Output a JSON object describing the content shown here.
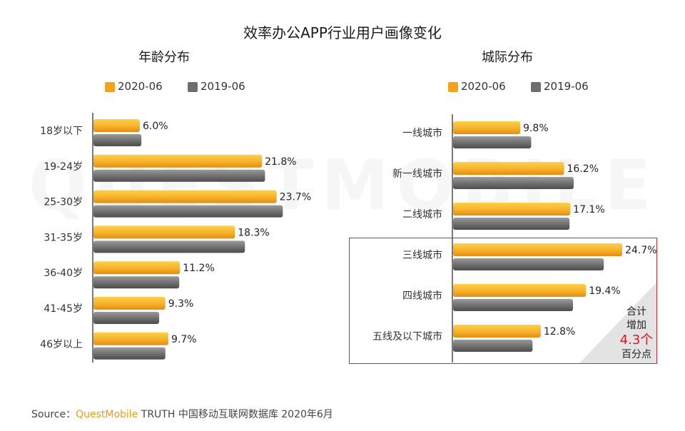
{
  "watermark": "QUESTMOBILE",
  "title": "效率办公APP行业用户画像变化",
  "legend": {
    "a_label": "2020-06",
    "b_label": "2019-06",
    "a_color": "#f5a21b",
    "b_color": "#6d6d6d"
  },
  "chart_data": [
    {
      "type": "bar",
      "orientation": "horizontal",
      "title": "年龄分布",
      "categories": [
        "18岁以下",
        "19-24岁",
        "25-30岁",
        "31-35岁",
        "36-40岁",
        "41-45岁",
        "46岁以上"
      ],
      "series": [
        {
          "name": "2020-06",
          "values": [
            6.0,
            21.8,
            23.7,
            18.3,
            11.2,
            9.3,
            9.7
          ],
          "labels": [
            "6.0%",
            "21.8%",
            "23.7%",
            "18.3%",
            "11.2%",
            "9.3%",
            "9.7%"
          ]
        },
        {
          "name": "2019-06",
          "values": [
            6.2,
            22.2,
            24.5,
            19.6,
            11.1,
            8.5,
            9.3
          ]
        }
      ],
      "xlim": [
        0,
        24
      ]
    },
    {
      "type": "bar",
      "orientation": "horizontal",
      "title": "城际分布",
      "categories": [
        "一线城市",
        "新一线城市",
        "二线城市",
        "三线城市",
        "四线城市",
        "五线及以下城市"
      ],
      "series": [
        {
          "name": "2020-06",
          "values": [
            9.8,
            16.2,
            17.1,
            24.7,
            19.4,
            12.8
          ],
          "labels": [
            "9.8%",
            "16.2%",
            "17.1%",
            "24.7%",
            "19.4%",
            "12.8%"
          ]
        },
        {
          "name": "2019-06",
          "values": [
            11.4,
            17.6,
            17.0,
            22.0,
            17.5,
            11.6
          ]
        }
      ],
      "xlim": [
        0,
        24
      ]
    }
  ],
  "callout": {
    "line1": "合计",
    "line2": "增加",
    "value": "4.3个",
    "line3": "百分点"
  },
  "source": {
    "prefix": "Source：",
    "brand": "QuestMobile",
    "rest": " TRUTH 中国移动互联网数据库 2020年6月"
  }
}
